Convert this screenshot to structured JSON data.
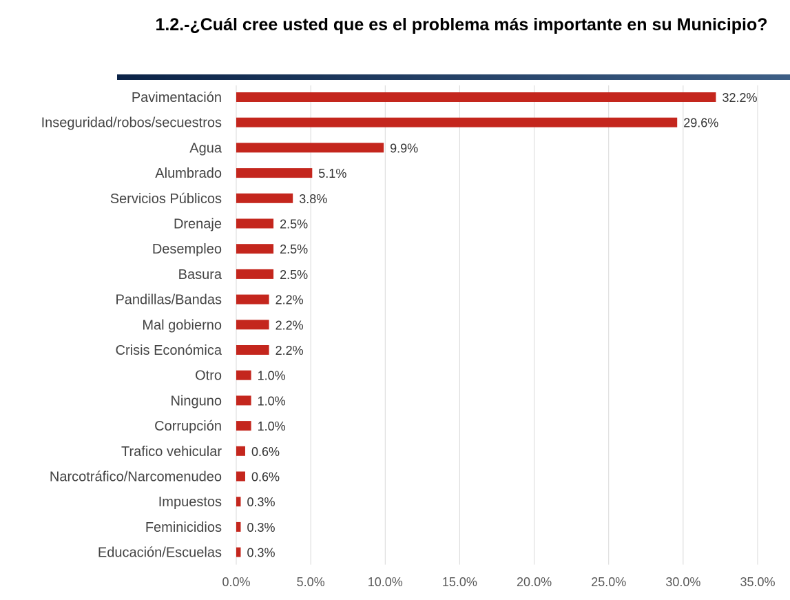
{
  "chart_data": {
    "type": "bar",
    "orientation": "horizontal",
    "title": "1.2.-¿Cuál cree usted que es el problema más importante en su Municipio?",
    "categories": [
      "Pavimentación",
      "Inseguridad/robos/secuestros",
      "Agua",
      "Alumbrado",
      "Servicios Públicos",
      "Drenaje",
      "Desempleo",
      "Basura",
      "Pandillas/Bandas",
      "Mal gobierno",
      "Crisis Económica",
      "Otro",
      "Ninguno",
      "Corrupción",
      "Trafico vehicular",
      "Narcotráfico/Narcomenudeo",
      "Impuestos",
      "Feminicidios",
      "Educación/Escuelas"
    ],
    "values": [
      32.2,
      29.6,
      9.9,
      5.1,
      3.8,
      2.5,
      2.5,
      2.5,
      2.2,
      2.2,
      2.2,
      1.0,
      1.0,
      1.0,
      0.6,
      0.6,
      0.3,
      0.3,
      0.3
    ],
    "value_labels": [
      "32.2%",
      "29.6%",
      "9.9%",
      "5.1%",
      "3.8%",
      "2.5%",
      "2.5%",
      "2.5%",
      "2.2%",
      "2.2%",
      "2.2%",
      "1.0%",
      "1.0%",
      "1.0%",
      "0.6%",
      "0.6%",
      "0.3%",
      "0.3%",
      "0.3%"
    ],
    "xlim": [
      0,
      35
    ],
    "xticks": [
      0,
      5,
      10,
      15,
      20,
      25,
      30,
      35
    ],
    "xtick_labels": [
      "0.0%",
      "5.0%",
      "10.0%",
      "15.0%",
      "20.0%",
      "25.0%",
      "30.0%",
      "35.0%"
    ],
    "grid": true,
    "legend": "none",
    "colors": {
      "bar": "#C4261D",
      "title_bar_start": "#0B2347",
      "title_bar_end": "#3E5F86",
      "grid": "#D9D9D9"
    }
  }
}
